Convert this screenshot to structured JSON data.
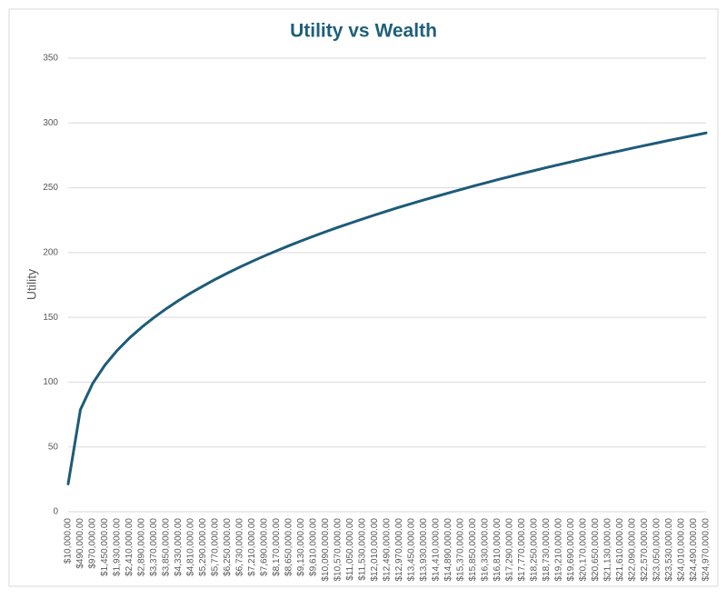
{
  "chart_data": {
    "type": "line",
    "title": "Utility vs Wealth",
    "y_label": "Utility",
    "categories": [
      "$10,000.00",
      "$490,000.00",
      "$970,000.00",
      "$1,450,000.00",
      "$1,930,000.00",
      "$2,410,000.00",
      "$2,890,000.00",
      "$3,370,000.00",
      "$3,850,000.00",
      "$4,330,000.00",
      "$4,810,000.00",
      "$5,290,000.00",
      "$5,770,000.00",
      "$6,250,000.00",
      "$6,730,000.00",
      "$7,210,000.00",
      "$7,690,000.00",
      "$8,170,000.00",
      "$8,650,000.00",
      "$9,130,000.00",
      "$9,610,000.00",
      "$10,090,000.00",
      "$10,570,000.00",
      "$11,050,000.00",
      "$11,530,000.00",
      "$12,010,000.00",
      "$12,490,000.00",
      "$12,970,000.00",
      "$13,450,000.00",
      "$13,930,000.00",
      "$14,410,000.00",
      "$14,890,000.00",
      "$15,370,000.00",
      "$15,850,000.00",
      "$16,330,000.00",
      "$16,810,000.00",
      "$17,290,000.00",
      "$17,770,000.00",
      "$18,250,000.00",
      "$18,730,000.00",
      "$19,210,000.00",
      "$19,690,000.00",
      "$20,170,000.00",
      "$20,650,000.00",
      "$21,130,000.00",
      "$21,610,000.00",
      "$22,090,000.00",
      "$22,570,000.00",
      "$23,050,000.00",
      "$23,530,000.00",
      "$24,010,000.00",
      "$24,490,000.00",
      "$24,970,000.00"
    ],
    "values": [
      21.5,
      78.8,
      99.0,
      113.2,
      124.5,
      134.1,
      142.4,
      149.9,
      156.7,
      163.0,
      168.8,
      174.2,
      179.4,
      184.2,
      188.8,
      193.2,
      197.4,
      201.4,
      205.3,
      209.0,
      212.6,
      216.1,
      219.5,
      222.7,
      225.9,
      229.0,
      232.0,
      235.0,
      237.8,
      240.6,
      243.3,
      246.0,
      248.6,
      251.2,
      253.7,
      256.2,
      258.6,
      261.0,
      263.3,
      265.6,
      267.8,
      270.0,
      272.2,
      274.4,
      276.5,
      278.5,
      280.6,
      282.6,
      284.6,
      286.6,
      288.5,
      290.4,
      292.3
    ],
    "color": "#1d5b79",
    "ylim": [
      0,
      350
    ],
    "yticks": [
      0,
      50,
      100,
      150,
      200,
      250,
      300,
      350
    ],
    "grid": true
  }
}
